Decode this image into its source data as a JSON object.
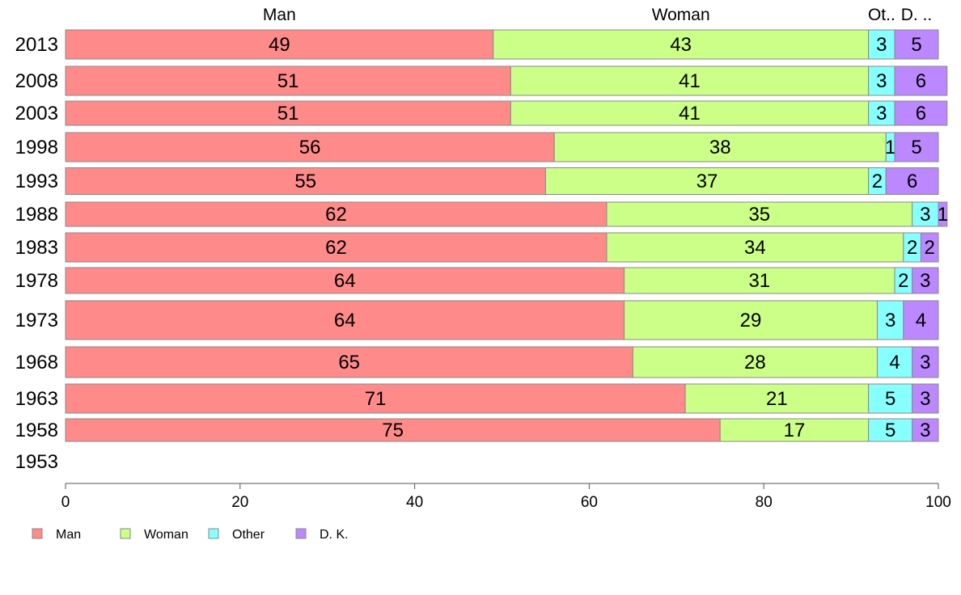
{
  "chart_data": {
    "type": "bar",
    "orientation": "horizontal",
    "stacked": true,
    "categories": [
      "2013",
      "2008",
      "2003",
      "1998",
      "1993",
      "1988",
      "1983",
      "1978",
      "1973",
      "1968",
      "1963",
      "1958",
      "1953"
    ],
    "series": [
      {
        "name": "Man",
        "color": "#ff8a8a",
        "values": [
          49,
          51,
          51,
          56,
          55,
          62,
          62,
          64,
          64,
          65,
          71,
          75,
          null
        ]
      },
      {
        "name": "Woman",
        "color": "#ccff88",
        "values": [
          43,
          41,
          41,
          38,
          37,
          35,
          34,
          31,
          29,
          28,
          21,
          17,
          null
        ]
      },
      {
        "name": "Other",
        "color": "#88ffff",
        "values": [
          3,
          3,
          3,
          1,
          2,
          3,
          2,
          2,
          3,
          4,
          5,
          5,
          null
        ]
      },
      {
        "name": "D. K.",
        "color": "#bb88ff",
        "values": [
          5,
          6,
          6,
          5,
          6,
          1,
          2,
          3,
          4,
          3,
          3,
          3,
          null
        ]
      }
    ],
    "series_headers": [
      "Man",
      "Woman",
      "Ot..",
      "D. .."
    ],
    "xlim": [
      0,
      100
    ],
    "xticks": [
      0,
      20,
      40,
      60,
      80,
      100
    ],
    "legend": {
      "position": "bottom-left",
      "labels": [
        "Man",
        "Woman",
        "Other",
        "D. K."
      ]
    },
    "grid": false
  }
}
